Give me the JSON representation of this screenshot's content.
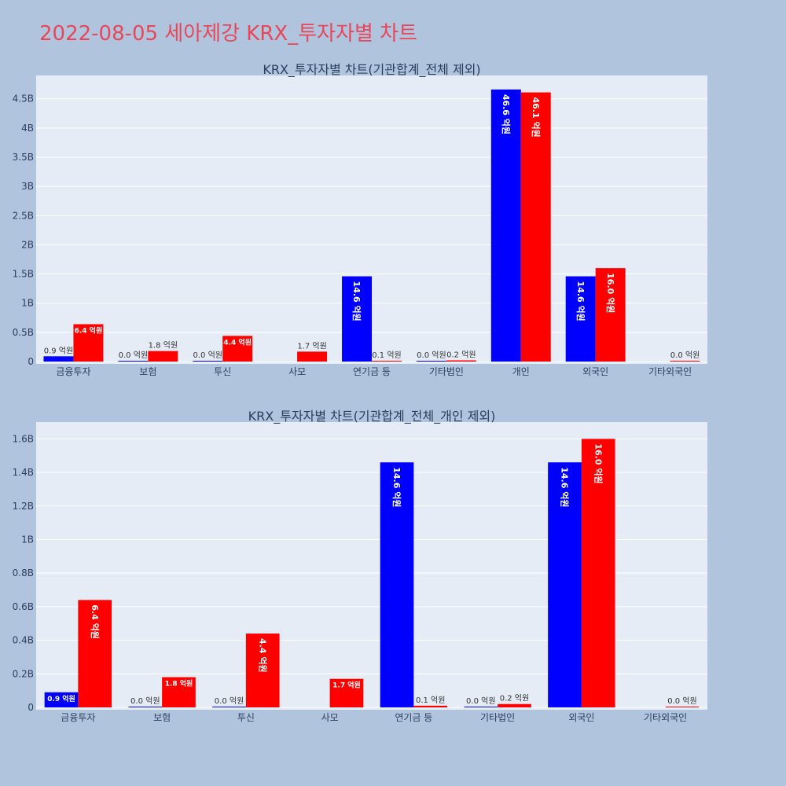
{
  "page_title": "2022-08-05 세아제강 KRX_투자자별 차트",
  "chart_data": [
    {
      "type": "bar",
      "title": "KRX_투자자별 차트(기관합계_전체 제외)",
      "categories": [
        "금융투자",
        "보험",
        "투신",
        "사모",
        "연기금 등",
        "기타법인",
        "개인",
        "외국인",
        "기타외국인"
      ],
      "ylim": [
        0,
        4.9
      ],
      "ytick_values": [
        0,
        0.5,
        1,
        1.5,
        2,
        2.5,
        3,
        3.5,
        4,
        4.5
      ],
      "ytick_labels": [
        "0",
        "0.5B",
        "1B",
        "1.5B",
        "2B",
        "2.5B",
        "3B",
        "3.5B",
        "4B",
        "4.5B"
      ],
      "series": [
        {
          "color": "#0000ff",
          "values": [
            0.09,
            0.0,
            0.0,
            null,
            1.46,
            0.0,
            4.66,
            1.46,
            null
          ],
          "labels": [
            "0.9 억원",
            "0.0 억원",
            "0.0 억원",
            null,
            "14.6 억원",
            "0.0 억원",
            "46.6 억원",
            "14.6 억원",
            null
          ]
        },
        {
          "color": "#ff0000",
          "values": [
            0.64,
            0.18,
            0.44,
            0.17,
            0.01,
            0.02,
            4.61,
            1.6,
            0.0
          ],
          "labels": [
            "6.4 억원",
            "1.8 억원",
            "4.4 억원",
            "1.7 억원",
            "0.1 억원",
            "0.2 억원",
            "46.1 억원",
            "16.0 억원",
            "0.0 억원"
          ]
        }
      ],
      "grid": true
    },
    {
      "type": "bar",
      "title": "KRX_투자자별 차트(기관합계_전체_개인 제외)",
      "categories": [
        "금융투자",
        "보험",
        "투신",
        "사모",
        "연기금 등",
        "기타법인",
        "외국인",
        "기타외국인"
      ],
      "ylim": [
        0,
        1.7
      ],
      "ytick_values": [
        0,
        0.2,
        0.4,
        0.6,
        0.8,
        1,
        1.2,
        1.4,
        1.6
      ],
      "ytick_labels": [
        "0",
        "0.2B",
        "0.4B",
        "0.6B",
        "0.8B",
        "1B",
        "1.2B",
        "1.4B",
        "1.6B"
      ],
      "series": [
        {
          "color": "#0000ff",
          "values": [
            0.09,
            0.0,
            0.0,
            null,
            1.46,
            0.0,
            1.46,
            null
          ],
          "labels": [
            "0.9 억원",
            "0.0 억원",
            "0.0 억원",
            null,
            "14.6 억원",
            "0.0 억원",
            "14.6 억원",
            null
          ]
        },
        {
          "color": "#ff0000",
          "values": [
            0.64,
            0.18,
            0.44,
            0.17,
            0.01,
            0.02,
            1.6,
            0.0
          ],
          "labels": [
            "6.4 억원",
            "1.8 억원",
            "4.4 억원",
            "1.7 억원",
            "0.1 억원",
            "0.2 억원",
            "16.0 억원",
            "0.0 억원"
          ]
        }
      ],
      "grid": true
    }
  ]
}
